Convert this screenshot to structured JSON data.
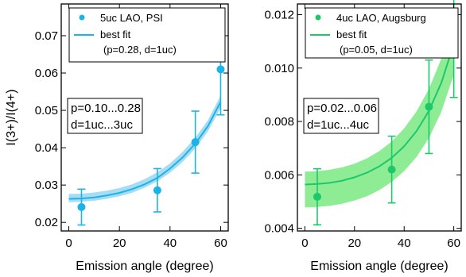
{
  "chart_data": [
    {
      "type": "scatter",
      "xlabel": "Emission angle (degree)",
      "ylabel": "I(3+)/I(4+)",
      "xlim": [
        -3,
        63
      ],
      "ylim": [
        0.0177,
        0.0785
      ],
      "xticks": [
        0,
        20,
        40,
        60
      ],
      "yticks": [
        0.02,
        0.03,
        0.04,
        0.05,
        0.06,
        0.07
      ],
      "ytick_labels": [
        "0.02",
        "0.03",
        "0.04",
        "0.05",
        "0.06",
        "0.07"
      ],
      "color": "#1cb4e8",
      "band_color": "#a6dcf4",
      "legend_position": "top-right",
      "legend": {
        "points_label": "5uc LAO, PSI",
        "fit_label_line1": "best fit",
        "fit_label_line2": "(p=0.28, d=1uc)"
      },
      "annotation": [
        "p=0.10...0.28",
        "d=1uc...3uc"
      ],
      "series": [
        {
          "name": "5uc LAO, PSI",
          "kind": "points",
          "x": [
            5,
            35,
            50,
            60
          ],
          "y": [
            0.0241,
            0.0286,
            0.0415,
            0.061
          ],
          "err": [
            0.0048,
            0.0058,
            0.0083,
            0.0122
          ]
        },
        {
          "name": "best fit",
          "kind": "fit",
          "x": [
            0,
            5,
            10,
            15,
            20,
            25,
            30,
            35,
            40,
            45,
            50,
            55,
            60
          ],
          "y": [
            0.0263,
            0.0264,
            0.0267,
            0.0272,
            0.0279,
            0.0289,
            0.0302,
            0.0319,
            0.0344,
            0.0374,
            0.0411,
            0.0458,
            0.0523
          ],
          "band_low": [
            0.0254,
            0.0255,
            0.0258,
            0.0263,
            0.027,
            0.0279,
            0.0293,
            0.031,
            0.0333,
            0.0362,
            0.0398,
            0.0444,
            0.0507
          ],
          "band_high": [
            0.0276,
            0.0277,
            0.028,
            0.0285,
            0.0292,
            0.0302,
            0.0316,
            0.0334,
            0.0358,
            0.0389,
            0.0427,
            0.0474,
            0.054
          ]
        }
      ]
    },
    {
      "type": "scatter",
      "xlabel": "Emission angle (degree)",
      "ylabel": "",
      "xlim": [
        -3,
        63
      ],
      "ylim": [
        0.0039,
        0.0124
      ],
      "xticks": [
        0,
        20,
        40,
        60
      ],
      "yticks": [
        0.004,
        0.006,
        0.008,
        0.01,
        0.012
      ],
      "ytick_labels": [
        "0.004",
        "0.006",
        "0.008",
        "0.010",
        "0.012"
      ],
      "color": "#1cc86a",
      "band_color": "#8eed94",
      "legend_position": "top-right",
      "legend": {
        "points_label": "4uc LAO, Augsburg",
        "fit_label_line1": "best fit",
        "fit_label_line2": "(p=0.05, d=1uc)"
      },
      "annotation": [
        "p=0.02...0.06",
        "d=1uc...4uc"
      ],
      "series": [
        {
          "name": "4uc LAO, Augsburg",
          "kind": "points",
          "x": [
            5,
            35,
            50,
            60
          ],
          "y": [
            0.00518,
            0.0062,
            0.00855,
            0.0113
          ],
          "err": [
            0.00105,
            0.00125,
            0.00175,
            0.0024
          ]
        },
        {
          "name": "best fit",
          "kind": "fit",
          "x": [
            0,
            5,
            10,
            15,
            20,
            25,
            30,
            35,
            40,
            45,
            50,
            55,
            60
          ],
          "y": [
            0.00564,
            0.00566,
            0.0057,
            0.00578,
            0.00591,
            0.00608,
            0.00632,
            0.00664,
            0.00707,
            0.00764,
            0.0084,
            0.00945,
            0.0109
          ],
          "band_low": [
            0.00478,
            0.0048,
            0.00484,
            0.00492,
            0.00504,
            0.0052,
            0.00543,
            0.00574,
            0.00614,
            0.00667,
            0.00738,
            0.00836,
            0.00975
          ],
          "band_high": [
            0.00612,
            0.00614,
            0.00619,
            0.00628,
            0.00642,
            0.00662,
            0.00689,
            0.00725,
            0.00774,
            0.00838,
            0.00922,
            0.01036,
            0.0119
          ]
        }
      ]
    }
  ]
}
